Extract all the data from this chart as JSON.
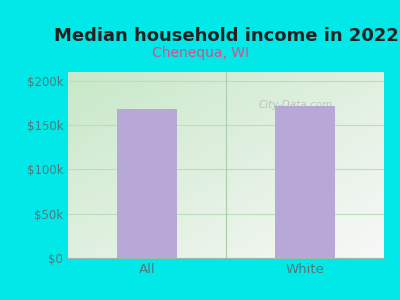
{
  "title": "Median household income in 2022",
  "subtitle": "Chenequa, WI",
  "categories": [
    "All",
    "White"
  ],
  "values": [
    168000,
    172000
  ],
  "bar_color": "#b8a8d8",
  "background_color": "#00e8e8",
  "plot_bg_top_left": "#c8e8c8",
  "plot_bg_bottom_right": "#f0f0f0",
  "yticks": [
    0,
    50000,
    100000,
    150000,
    200000
  ],
  "ytick_labels": [
    "$0",
    "$50k",
    "$100k",
    "$150k",
    "$200k"
  ],
  "ylim": [
    0,
    210000
  ],
  "title_fontsize": 13,
  "subtitle_fontsize": 10,
  "subtitle_color": "#cc5588",
  "tick_color": "#557777",
  "watermark": "City-Data.com",
  "bar_width": 0.38,
  "grid_color": "#bbddbb"
}
